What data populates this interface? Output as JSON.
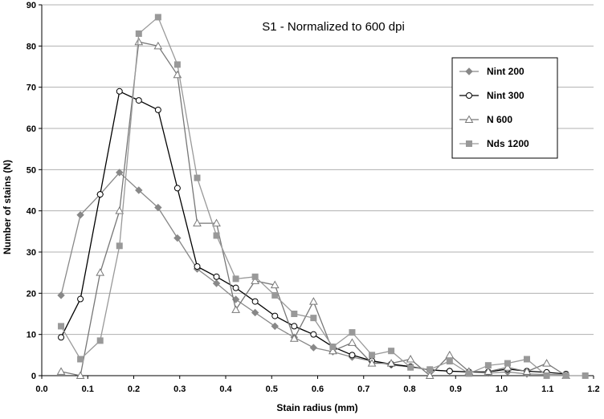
{
  "chart_data": {
    "type": "line",
    "title": "S1 - Normalized to 600 dpi",
    "xlabel": "Stain radius (mm)",
    "ylabel": "Number of stains (N)",
    "xlim": [
      0,
      1.2
    ],
    "ylim": [
      0,
      90
    ],
    "xticks": [
      "0.0",
      "0.1",
      "0.2",
      "0.3",
      "0.4",
      "0.5",
      "0.6",
      "0.7",
      "0.8",
      "0.9",
      "1.0",
      "1.1",
      "1.2"
    ],
    "yticks": [
      "0",
      "10",
      "20",
      "30",
      "40",
      "50",
      "60",
      "70",
      "80",
      "90"
    ],
    "grid": "horizontal",
    "legend_position": "right",
    "series": [
      {
        "name": "Nint 200",
        "color": "#888888",
        "marker": "diamond",
        "points": [
          [
            0.042,
            19.5
          ],
          [
            0.084,
            39
          ],
          [
            0.127,
            44
          ],
          [
            0.169,
            49.3
          ],
          [
            0.211,
            45
          ],
          [
            0.253,
            40.8
          ],
          [
            0.295,
            33.4
          ],
          [
            0.338,
            25.9
          ],
          [
            0.38,
            22.4
          ],
          [
            0.422,
            18.5
          ],
          [
            0.464,
            15.3
          ],
          [
            0.507,
            12
          ],
          [
            0.549,
            9.3
          ],
          [
            0.591,
            6.8
          ],
          [
            0.633,
            5.8
          ],
          [
            0.675,
            4.5
          ],
          [
            0.718,
            3.5
          ],
          [
            0.76,
            2.6
          ],
          [
            0.802,
            2.1
          ],
          [
            0.844,
            1.4
          ],
          [
            0.887,
            1.1
          ],
          [
            0.929,
            0.9
          ],
          [
            0.971,
            0.6
          ],
          [
            1.013,
            0.9
          ],
          [
            1.055,
            0.4
          ],
          [
            1.098,
            0.3
          ],
          [
            1.14,
            0.2
          ]
        ]
      },
      {
        "name": "Nint 300",
        "color": "#000000",
        "marker": "circle",
        "points": [
          [
            0.042,
            9.3
          ],
          [
            0.084,
            18.6
          ],
          [
            0.127,
            44
          ],
          [
            0.169,
            69
          ],
          [
            0.211,
            66.8
          ],
          [
            0.253,
            64.5
          ],
          [
            0.295,
            45.5
          ],
          [
            0.338,
            26.5
          ],
          [
            0.38,
            24
          ],
          [
            0.422,
            21.3
          ],
          [
            0.464,
            18
          ],
          [
            0.507,
            14.5
          ],
          [
            0.549,
            12
          ],
          [
            0.591,
            10
          ],
          [
            0.633,
            7
          ],
          [
            0.675,
            5
          ],
          [
            0.718,
            3.6
          ],
          [
            0.76,
            2.8
          ],
          [
            0.802,
            2.2
          ],
          [
            0.844,
            1.4
          ],
          [
            0.887,
            1.1
          ],
          [
            0.929,
            0.9
          ],
          [
            0.971,
            0.9
          ],
          [
            1.013,
            1.6
          ],
          [
            1.055,
            1.1
          ],
          [
            1.098,
            0.8
          ],
          [
            1.14,
            0.4
          ]
        ]
      },
      {
        "name": "N 600",
        "color": "#777777",
        "marker": "triangle",
        "points": [
          [
            0.042,
            1
          ],
          [
            0.084,
            0
          ],
          [
            0.127,
            25
          ],
          [
            0.169,
            40
          ],
          [
            0.211,
            81
          ],
          [
            0.253,
            80
          ],
          [
            0.295,
            73
          ],
          [
            0.338,
            37
          ],
          [
            0.38,
            37
          ],
          [
            0.422,
            16
          ],
          [
            0.464,
            23
          ],
          [
            0.507,
            22
          ],
          [
            0.549,
            9
          ],
          [
            0.591,
            18
          ],
          [
            0.633,
            6
          ],
          [
            0.675,
            8
          ],
          [
            0.718,
            3
          ],
          [
            0.76,
            3
          ],
          [
            0.802,
            4
          ],
          [
            0.844,
            0
          ],
          [
            0.887,
            5
          ],
          [
            0.929,
            1
          ],
          [
            0.971,
            1
          ],
          [
            1.013,
            2
          ],
          [
            1.055,
            1
          ],
          [
            1.098,
            3
          ],
          [
            1.14,
            0
          ]
        ]
      },
      {
        "name": "Nds 1200",
        "color": "#999999",
        "marker": "square",
        "points": [
          [
            0.042,
            12
          ],
          [
            0.084,
            4
          ],
          [
            0.127,
            8.5
          ],
          [
            0.169,
            31.5
          ],
          [
            0.211,
            83
          ],
          [
            0.253,
            87
          ],
          [
            0.295,
            75.5
          ],
          [
            0.338,
            48
          ],
          [
            0.38,
            34
          ],
          [
            0.422,
            23.5
          ],
          [
            0.464,
            24
          ],
          [
            0.507,
            19.5
          ],
          [
            0.549,
            15
          ],
          [
            0.591,
            14
          ],
          [
            0.633,
            7
          ],
          [
            0.675,
            10.5
          ],
          [
            0.718,
            5
          ],
          [
            0.76,
            6
          ],
          [
            0.802,
            2
          ],
          [
            0.844,
            1.5
          ],
          [
            0.887,
            3.5
          ],
          [
            0.929,
            0.5
          ],
          [
            0.971,
            2.5
          ],
          [
            1.013,
            3
          ],
          [
            1.055,
            4
          ],
          [
            1.098,
            0
          ],
          [
            1.14,
            0
          ],
          [
            1.182,
            0
          ]
        ]
      }
    ]
  }
}
